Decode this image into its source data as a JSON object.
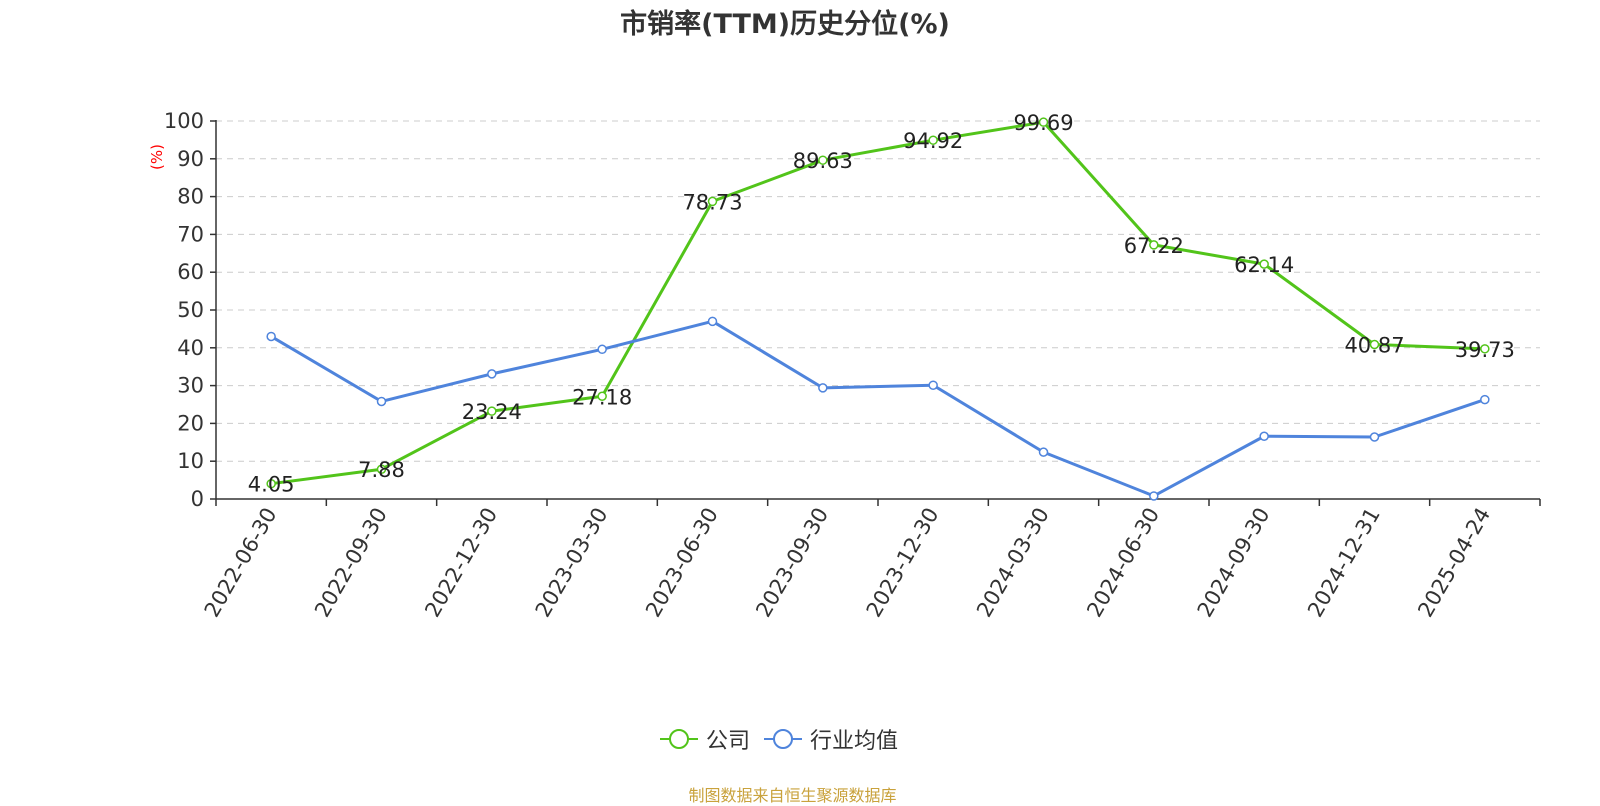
{
  "title": "市销率(TTM)历史分位(%)",
  "source": "制图数据来自恒生聚源数据库",
  "colors": {
    "company": "#52c41a",
    "industry": "#4f84dc",
    "axis": "#333333",
    "grid": "#cccccc",
    "ylabel": "#ff0000",
    "source": "#c9a23c"
  },
  "chart_data": {
    "type": "line",
    "title": "市销率(TTM)历史分位(%)",
    "ylabel": "(%)",
    "xlabel": "",
    "ylim": [
      0,
      100
    ],
    "yticks": [
      0,
      10,
      20,
      30,
      40,
      50,
      60,
      70,
      80,
      90,
      100
    ],
    "grid": true,
    "legend_position": "bottom-center",
    "categories": [
      "2022-06-30",
      "2022-09-30",
      "2022-12-30",
      "2023-03-30",
      "2023-06-30",
      "2023-09-30",
      "2023-12-30",
      "2024-03-30",
      "2024-06-30",
      "2024-09-30",
      "2024-12-31",
      "2025-04-24"
    ],
    "series": [
      {
        "name": "公司",
        "color": "#52c41a",
        "show_labels": true,
        "values": [
          4.05,
          7.88,
          23.24,
          27.18,
          78.73,
          89.63,
          94.92,
          99.69,
          67.22,
          62.14,
          40.87,
          39.73
        ],
        "labels": [
          "4.05",
          "7.88",
          "23.24",
          "27.18",
          "78.73",
          "89.63",
          "94.92",
          "99.69",
          "67.22",
          "62.14",
          "40.87",
          "39.73"
        ]
      },
      {
        "name": "行业均值",
        "color": "#4f84dc",
        "show_labels": false,
        "values": [
          43.0,
          25.8,
          33.1,
          39.6,
          47.0,
          29.4,
          30.1,
          12.4,
          0.8,
          16.6,
          16.4,
          26.3
        ]
      }
    ]
  }
}
